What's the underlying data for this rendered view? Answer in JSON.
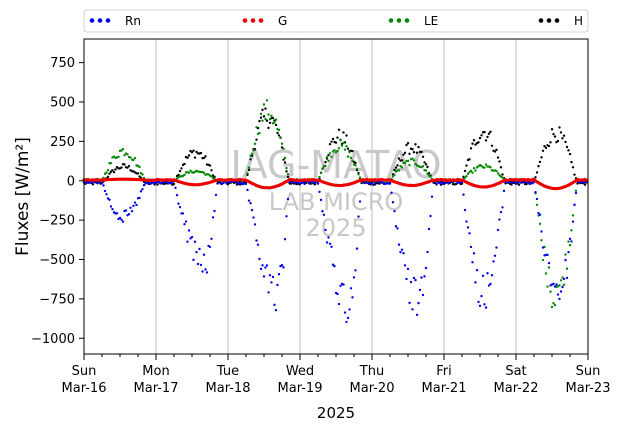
{
  "chart_data": {
    "type": "scatter",
    "ylabel_main": "Fluxes ",
    "ylabel_unit": "[W/m²]",
    "xlabel": "2025",
    "ylim": [
      -1100,
      900
    ],
    "yticks": [
      750,
      500,
      250,
      0,
      -250,
      -500,
      -750,
      -1000
    ],
    "xlim": [
      0,
      7
    ],
    "xticks": [
      {
        "day": "Sun",
        "date": "Mar-16"
      },
      {
        "day": "Mon",
        "date": "Mar-17"
      },
      {
        "day": "Tue",
        "date": "Mar-18"
      },
      {
        "day": "Wed",
        "date": "Mar-19"
      },
      {
        "day": "Thu",
        "date": "Mar-20"
      },
      {
        "day": "Fri",
        "date": "Mar-21"
      },
      {
        "day": "Sat",
        "date": "Mar-22"
      },
      {
        "day": "Sun",
        "date": "Mar-23"
      }
    ],
    "grid": "vertical",
    "legend_position": "top",
    "watermark": [
      "IAG-MATAO",
      "LAB MICRO",
      "2025"
    ],
    "series": [
      {
        "name": "Rn",
        "color": "#0000ee",
        "day_min": [
          -230,
          -530,
          -720,
          -780,
          -750,
          -710,
          -690
        ],
        "day_peak": [
          0.55,
          0.68,
          0.68,
          0.68,
          0.62,
          0.55,
          0.6
        ],
        "night": -10
      },
      {
        "name": "G",
        "color": "#ee0000",
        "day_min": [
          10,
          -25,
          -45,
          -30,
          -30,
          -40,
          -50
        ],
        "night": 5
      },
      {
        "name": "LE",
        "color": "#008800",
        "day_min": [
          190,
          60,
          440,
          220,
          120,
          90,
          -720
        ],
        "night": 0
      },
      {
        "name": "H",
        "color": "#000000",
        "day_min": [
          90,
          180,
          410,
          280,
          210,
          310,
          300
        ],
        "night": -15
      }
    ]
  }
}
